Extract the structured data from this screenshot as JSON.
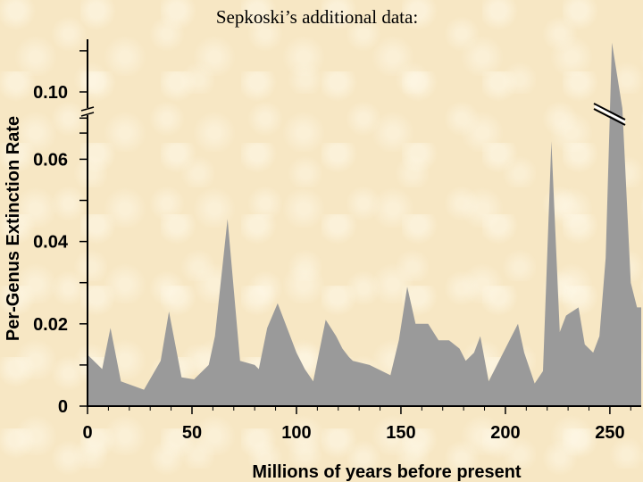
{
  "chart_data": {
    "type": "area",
    "title": "Sepkoski’s additional data:",
    "xlabel": "Millions of years before present",
    "ylabel": "Per-Genus Extinction Rate",
    "xlim": [
      0,
      265
    ],
    "y_ticks": [
      0,
      0.02,
      0.04,
      0.06,
      0.1
    ],
    "y_tick_labels": [
      "0",
      "0.02",
      "0.04",
      "0.06",
      "0.10"
    ],
    "x_ticks": [
      0,
      50,
      100,
      150,
      200,
      250
    ],
    "x_tick_labels": [
      "0",
      "50",
      "100",
      "150",
      "200",
      "250"
    ],
    "y_axis_break": [
      0.07,
      0.095
    ],
    "fill_color": "#9a9a9a",
    "series": [
      {
        "x": [
          0,
          5,
          7,
          11,
          16,
          27,
          35,
          39,
          45,
          51,
          58,
          61,
          67,
          73,
          80,
          82,
          86,
          91,
          100,
          104,
          108,
          114,
          119,
          122,
          125,
          127,
          135,
          139,
          143,
          145,
          149,
          153,
          157,
          163,
          168,
          173,
          178,
          181,
          185,
          188,
          192,
          197,
          203,
          206,
          209,
          214,
          218,
          222,
          226,
          229,
          235,
          238,
          242,
          245,
          248,
          251,
          256,
          260,
          263,
          265
        ],
        "y": [
          0.0125,
          0.01,
          0.009,
          0.019,
          0.006,
          0.004,
          0.011,
          0.023,
          0.007,
          0.0065,
          0.01,
          0.017,
          0.0455,
          0.011,
          0.01,
          0.009,
          0.019,
          0.025,
          0.013,
          0.009,
          0.006,
          0.021,
          0.017,
          0.014,
          0.012,
          0.011,
          0.01,
          0.009,
          0.008,
          0.0075,
          0.016,
          0.029,
          0.02,
          0.02,
          0.016,
          0.016,
          0.014,
          0.011,
          0.013,
          0.017,
          0.006,
          0.011,
          0.017,
          0.02,
          0.013,
          0.0055,
          0.0085,
          0.088,
          0.018,
          0.022,
          0.024,
          0.015,
          0.013,
          0.017,
          0.036,
          0.112,
          0.096,
          0.03,
          0.024,
          0.024
        ]
      }
    ],
    "grid": false,
    "legend": "none"
  }
}
